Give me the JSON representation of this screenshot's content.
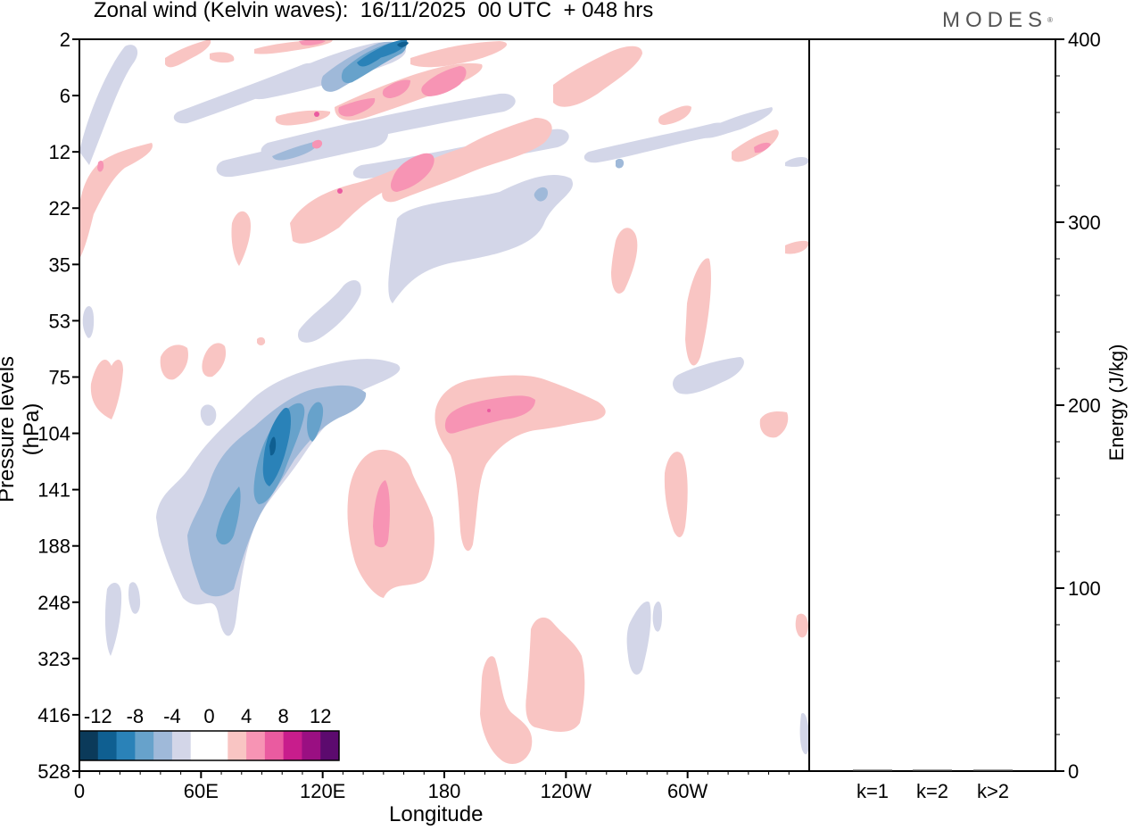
{
  "title": "Zonal wind (Kelvin waves):  16/11/2025  00 UTC  + 048 hrs",
  "brand": "MODES",
  "chart_data": [
    {
      "type": "heatmap",
      "title": "Zonal wind (Kelvin waves):  16/11/2025  00 UTC  + 048 hrs",
      "xlabel": "Longitude",
      "ylabel": "Pressure levels (hPa)",
      "x_ticks": [
        "0",
        "60E",
        "120E",
        "180",
        "120W",
        "60W"
      ],
      "x_tick_degrees": [
        0,
        60,
        120,
        180,
        240,
        300
      ],
      "xlim": [
        0,
        360
      ],
      "y_ticks": [
        "2",
        "6",
        "12",
        "22",
        "35",
        "53",
        "75",
        "104",
        "141",
        "188",
        "248",
        "323",
        "416",
        "528"
      ],
      "colorbar": {
        "labels": [
          "-12",
          "-8",
          "-4",
          "0",
          "4",
          "8",
          "12"
        ],
        "levels": [
          -14,
          -12,
          -10,
          -8,
          -6,
          -4,
          -2,
          2,
          4,
          6,
          8,
          10,
          12,
          14
        ],
        "colors": [
          "#0b3a5a",
          "#0f5f91",
          "#2a82b8",
          "#67a2cb",
          "#9fb9d9",
          "#d3d6e8",
          "#ffffff",
          "#ffffff",
          "#f9c5c3",
          "#f794b4",
          "#ea5ba0",
          "#c81d8c",
          "#9a0f82",
          "#5c0a6e"
        ]
      },
      "features": [
        {
          "label": "negative anomaly band near 104-188 hPa, 60E-120E",
          "peak": -12
        },
        {
          "label": "positive anomaly near 75-104 hPa, 180-120W",
          "peak": 6
        },
        {
          "label": "positive anomaly near 141-188 hPa, 140E-170E",
          "peak": 6
        },
        {
          "label": "negative anomaly near 2-6 hPa, 130E-160E",
          "peak": -10
        }
      ]
    },
    {
      "type": "bar",
      "ylabel": "Energy (J/kg)",
      "categories": [
        "k=1",
        "k=2",
        "k>2"
      ],
      "values": [
        0.3,
        0.2,
        0.2
      ],
      "ylim": [
        0,
        400
      ],
      "y_ticks": [
        "0",
        "100",
        "200",
        "300",
        "400"
      ]
    }
  ]
}
